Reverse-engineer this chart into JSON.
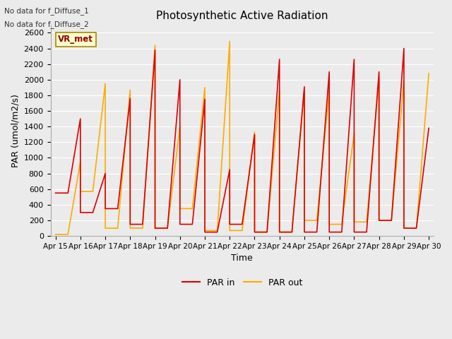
{
  "title": "Photosynthetic Active Radiation",
  "xlabel": "Time",
  "ylabel": "PAR (umol/m2/s)",
  "text_top_left_1": "No data for f_Diffuse_1",
  "text_top_left_2": "No data for f_Diffuse_2",
  "box_label": "VR_met",
  "legend": [
    "PAR in",
    "PAR out"
  ],
  "color_par_in": "#dd0000",
  "color_par_out": "#ffaa00",
  "ylim": [
    0,
    2700
  ],
  "yticks": [
    0,
    200,
    400,
    600,
    800,
    1000,
    1200,
    1400,
    1600,
    1800,
    2000,
    2200,
    2400,
    2600
  ],
  "x_labels": [
    "Apr 15",
    "Apr 16",
    "Apr 17",
    "Apr 18",
    "Apr 19",
    "Apr 20",
    "Apr 21",
    "Apr 22",
    "Apr 23",
    "Apr 24",
    "Apr 25",
    "Apr 26",
    "Apr 27",
    "Apr 28",
    "Apr 29",
    "Apr 30"
  ],
  "par_in_x": [
    0,
    0.5,
    1,
    1,
    1.5,
    2,
    2,
    2.5,
    3,
    3,
    3.5,
    4,
    4,
    4.5,
    5,
    5,
    5.5,
    6,
    6,
    6.5,
    7,
    7,
    7.5,
    8,
    8,
    8.5,
    9,
    9,
    9.5,
    10,
    10,
    10.5,
    11,
    11,
    11.5,
    12,
    12,
    12.5,
    13,
    13,
    13.5,
    14,
    14,
    14.5,
    15
  ],
  "par_in_y": [
    550,
    550,
    1500,
    300,
    300,
    800,
    350,
    350,
    1760,
    150,
    150,
    2380,
    100,
    100,
    2000,
    150,
    150,
    1750,
    50,
    50,
    850,
    150,
    150,
    1300,
    50,
    50,
    2260,
    50,
    50,
    1910,
    50,
    50,
    2100,
    50,
    50,
    2260,
    50,
    50,
    2100,
    200,
    200,
    2400,
    100,
    100,
    1380
  ],
  "par_out_x": [
    0,
    0.5,
    1,
    1,
    1.5,
    2,
    2,
    2.5,
    3,
    3,
    3.5,
    4,
    4,
    4.5,
    5,
    5,
    5.5,
    6,
    6,
    6.5,
    7,
    7,
    7.5,
    8,
    8,
    8.5,
    9,
    9,
    9.5,
    10,
    10,
    10.5,
    11,
    11,
    11.5,
    12,
    12,
    12.5,
    13,
    13,
    13.5,
    14,
    14,
    14.5,
    15
  ],
  "par_out_y": [
    20,
    20,
    950,
    570,
    570,
    1950,
    100,
    100,
    1870,
    100,
    100,
    2440,
    100,
    100,
    1400,
    350,
    350,
    1900,
    70,
    70,
    2490,
    70,
    70,
    1330,
    50,
    50,
    1870,
    50,
    50,
    1870,
    200,
    200,
    1870,
    150,
    150,
    1310,
    180,
    180,
    2000,
    200,
    200,
    1990,
    100,
    100,
    2080
  ],
  "background_color": "#ebebeb",
  "plot_bg_color": "#ebebeb",
  "grid_color": "#ffffff"
}
